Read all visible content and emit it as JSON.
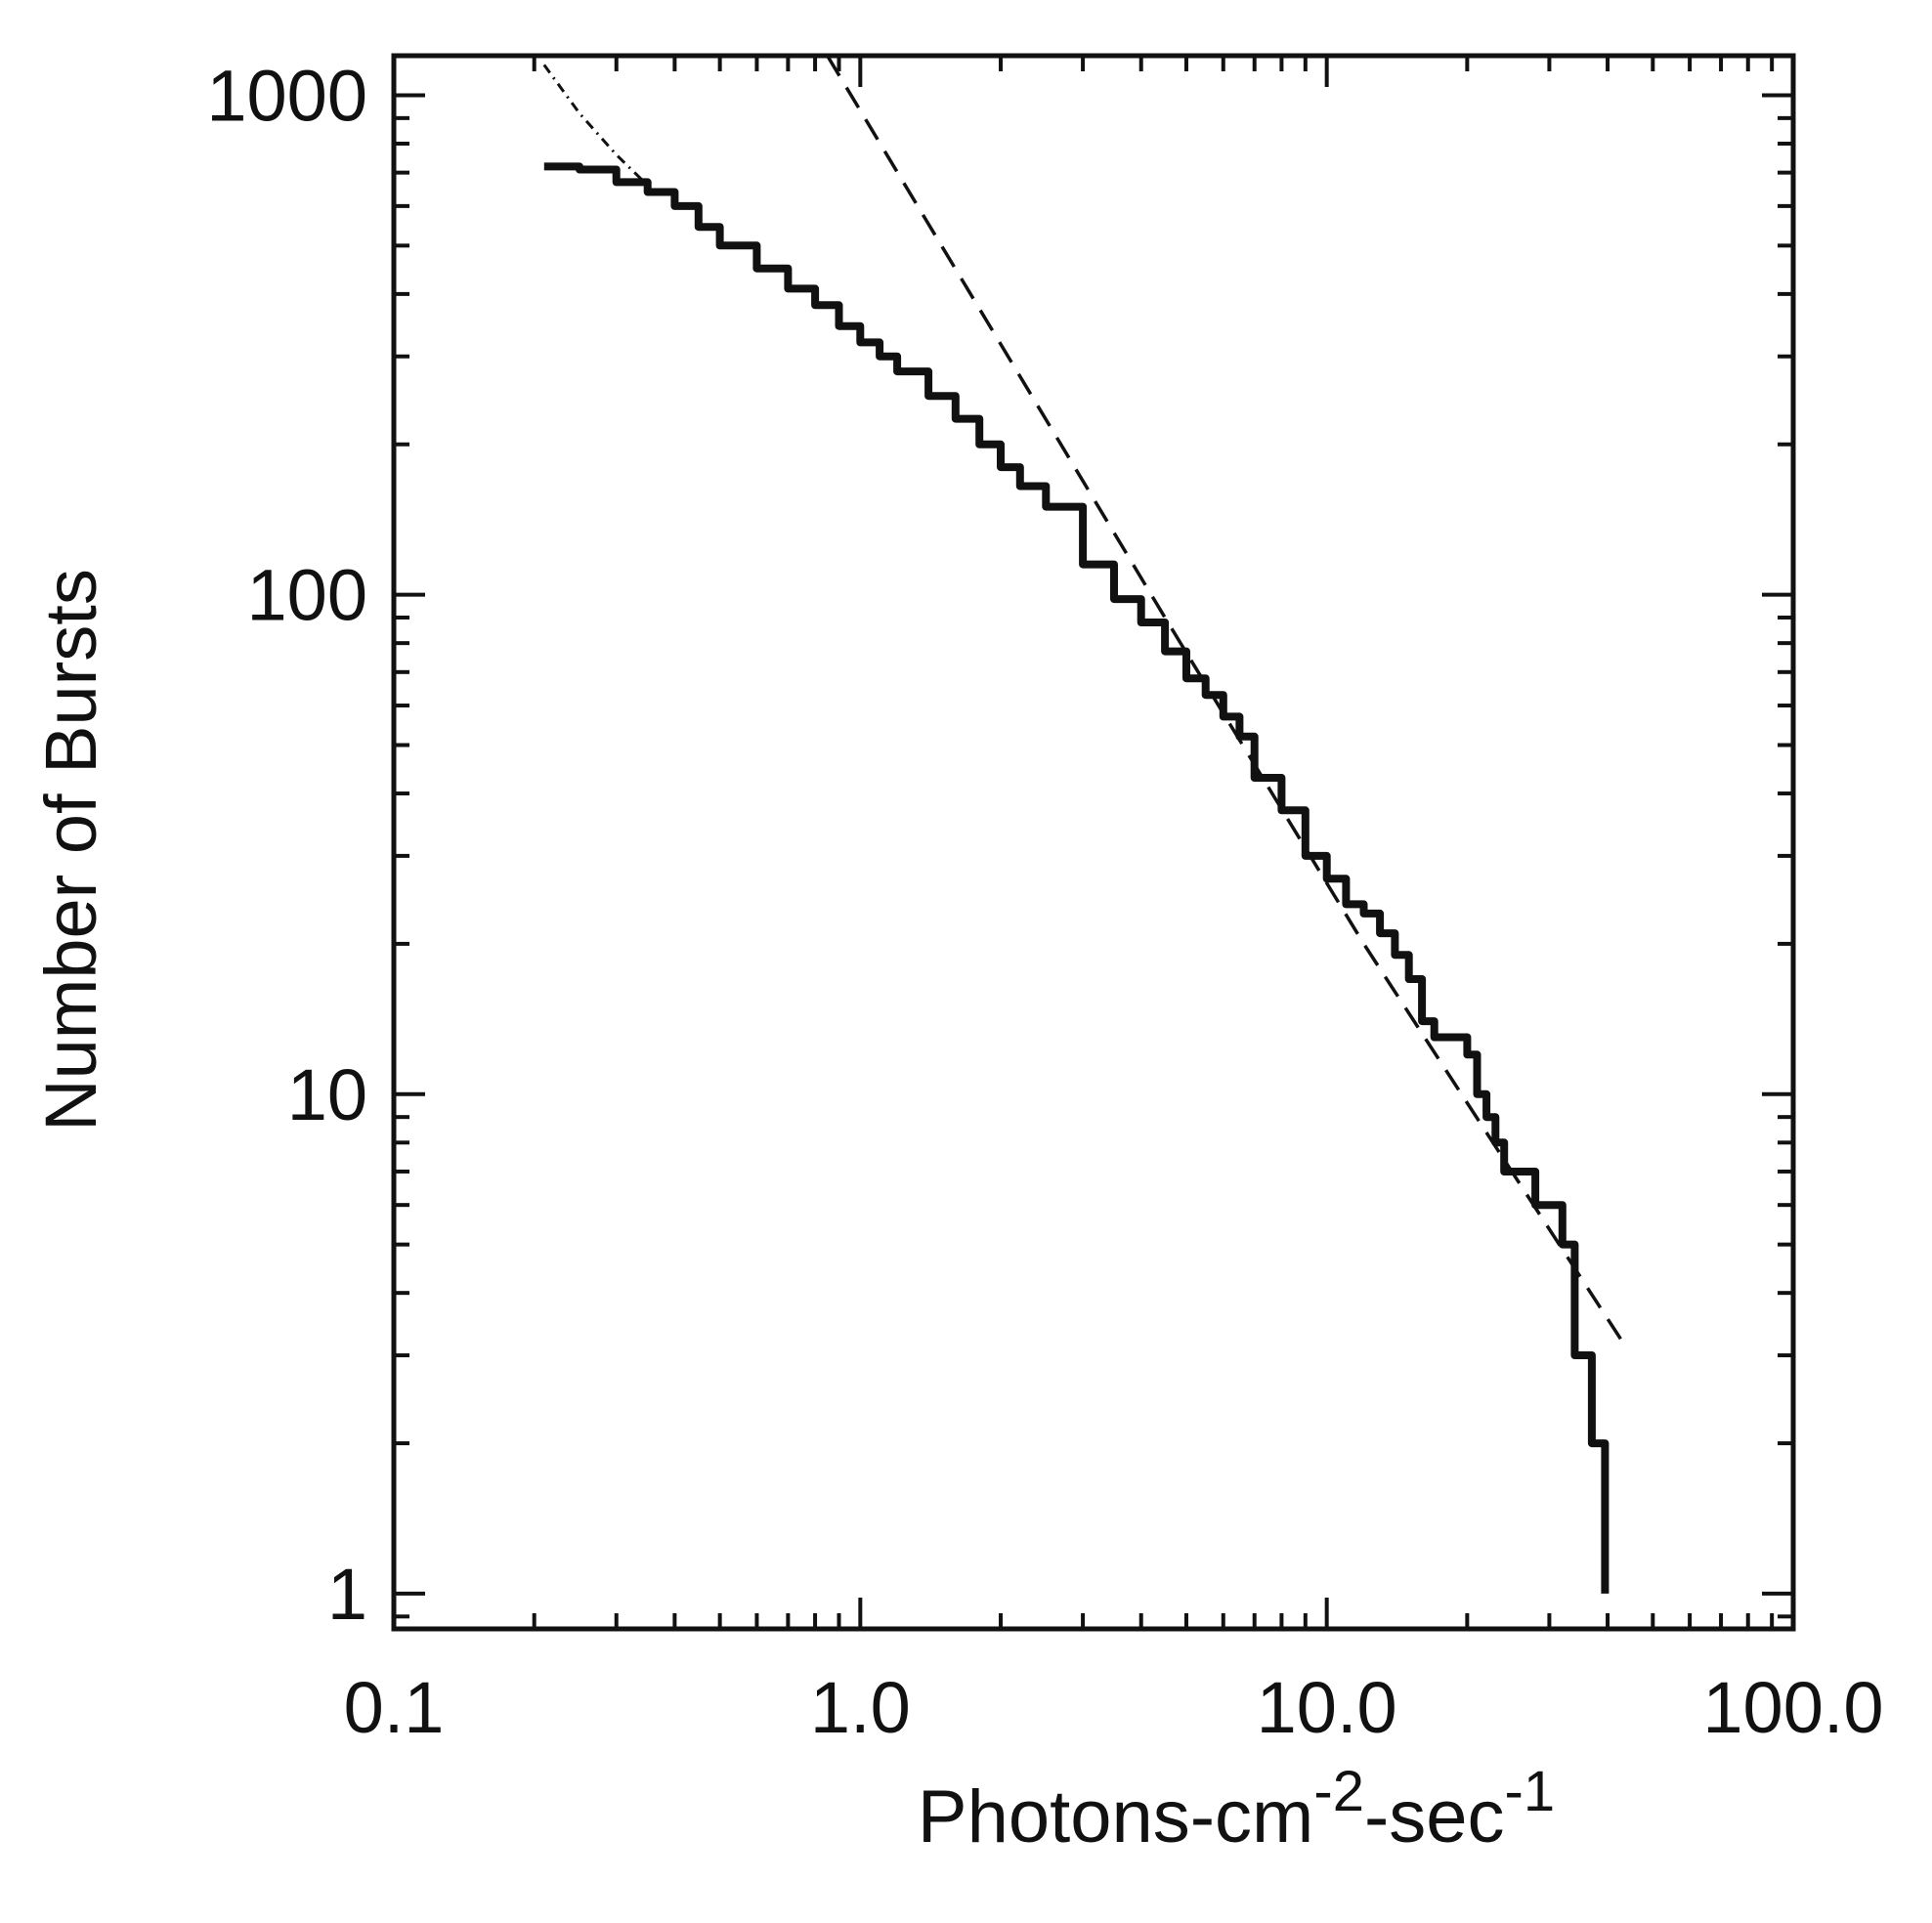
{
  "chart_data": {
    "type": "line",
    "title": "",
    "xlabel": {
      "base": "Photons-cm",
      "sup1": "-2",
      "mid": "-sec",
      "sup2": "-1"
    },
    "ylabel": "Number of Bursts",
    "xscale": "log",
    "yscale": "log",
    "xlim": [
      0.1,
      100.0
    ],
    "ylim": [
      0.85,
      1200
    ],
    "x_ticks": [
      {
        "value": 0.1,
        "label": "0.1"
      },
      {
        "value": 1.0,
        "label": "1.0"
      },
      {
        "value": 10.0,
        "label": "10.0"
      },
      {
        "value": 100.0,
        "label": "100.0"
      }
    ],
    "y_ticks": [
      {
        "value": 1,
        "label": "1"
      },
      {
        "value": 10,
        "label": "10"
      },
      {
        "value": 100,
        "label": "100"
      },
      {
        "value": 1000,
        "label": "1000"
      }
    ],
    "grid": false,
    "legend": "none",
    "series": [
      {
        "style": "solid-thick",
        "color": "#111111",
        "points": [
          [
            0.21,
            720
          ],
          [
            0.25,
            710
          ],
          [
            0.3,
            670
          ],
          [
            0.35,
            640
          ],
          [
            0.4,
            600
          ],
          [
            0.45,
            545
          ],
          [
            0.5,
            500
          ],
          [
            0.6,
            450
          ],
          [
            0.7,
            410
          ],
          [
            0.8,
            380
          ],
          [
            0.9,
            345
          ],
          [
            1.0,
            320
          ],
          [
            1.1,
            300
          ],
          [
            1.2,
            280
          ],
          [
            1.4,
            250
          ],
          [
            1.6,
            225
          ],
          [
            1.8,
            200
          ],
          [
            2.0,
            180
          ],
          [
            2.2,
            165
          ],
          [
            2.5,
            150
          ],
          [
            3.0,
            115
          ],
          [
            3.5,
            98
          ],
          [
            4.0,
            88
          ],
          [
            4.5,
            77
          ],
          [
            5.0,
            68
          ],
          [
            5.5,
            63
          ],
          [
            6.0,
            57
          ],
          [
            6.5,
            52
          ],
          [
            7.0,
            43
          ],
          [
            8.0,
            37
          ],
          [
            9.0,
            30
          ],
          [
            10.0,
            27
          ],
          [
            11.0,
            24
          ],
          [
            12.0,
            23
          ],
          [
            13.0,
            21
          ],
          [
            14.0,
            19
          ],
          [
            15.0,
            17
          ],
          [
            16.0,
            14
          ],
          [
            17.0,
            13
          ],
          [
            18.0,
            13
          ],
          [
            20.0,
            12
          ],
          [
            21.0,
            10
          ],
          [
            22.0,
            9
          ],
          [
            23.0,
            8
          ],
          [
            24.0,
            7
          ],
          [
            27.0,
            7
          ],
          [
            28.0,
            6
          ],
          [
            31.0,
            6
          ],
          [
            32.0,
            5
          ],
          [
            33.0,
            5
          ],
          [
            34.0,
            3
          ],
          [
            36.0,
            3
          ],
          [
            37.0,
            2
          ],
          [
            39.0,
            2
          ],
          [
            39.5,
            1
          ]
        ]
      },
      {
        "style": "dashed",
        "color": "#111111",
        "points": [
          [
            0.85,
            1200
          ],
          [
            4.5,
            90
          ],
          [
            12.0,
            20
          ],
          [
            43.0,
            3.2
          ]
        ]
      },
      {
        "style": "dash-dot",
        "color": "#111111",
        "points": [
          [
            0.21,
            1150
          ],
          [
            0.25,
            920
          ],
          [
            0.3,
            760
          ],
          [
            0.35,
            660
          ]
        ]
      }
    ]
  }
}
